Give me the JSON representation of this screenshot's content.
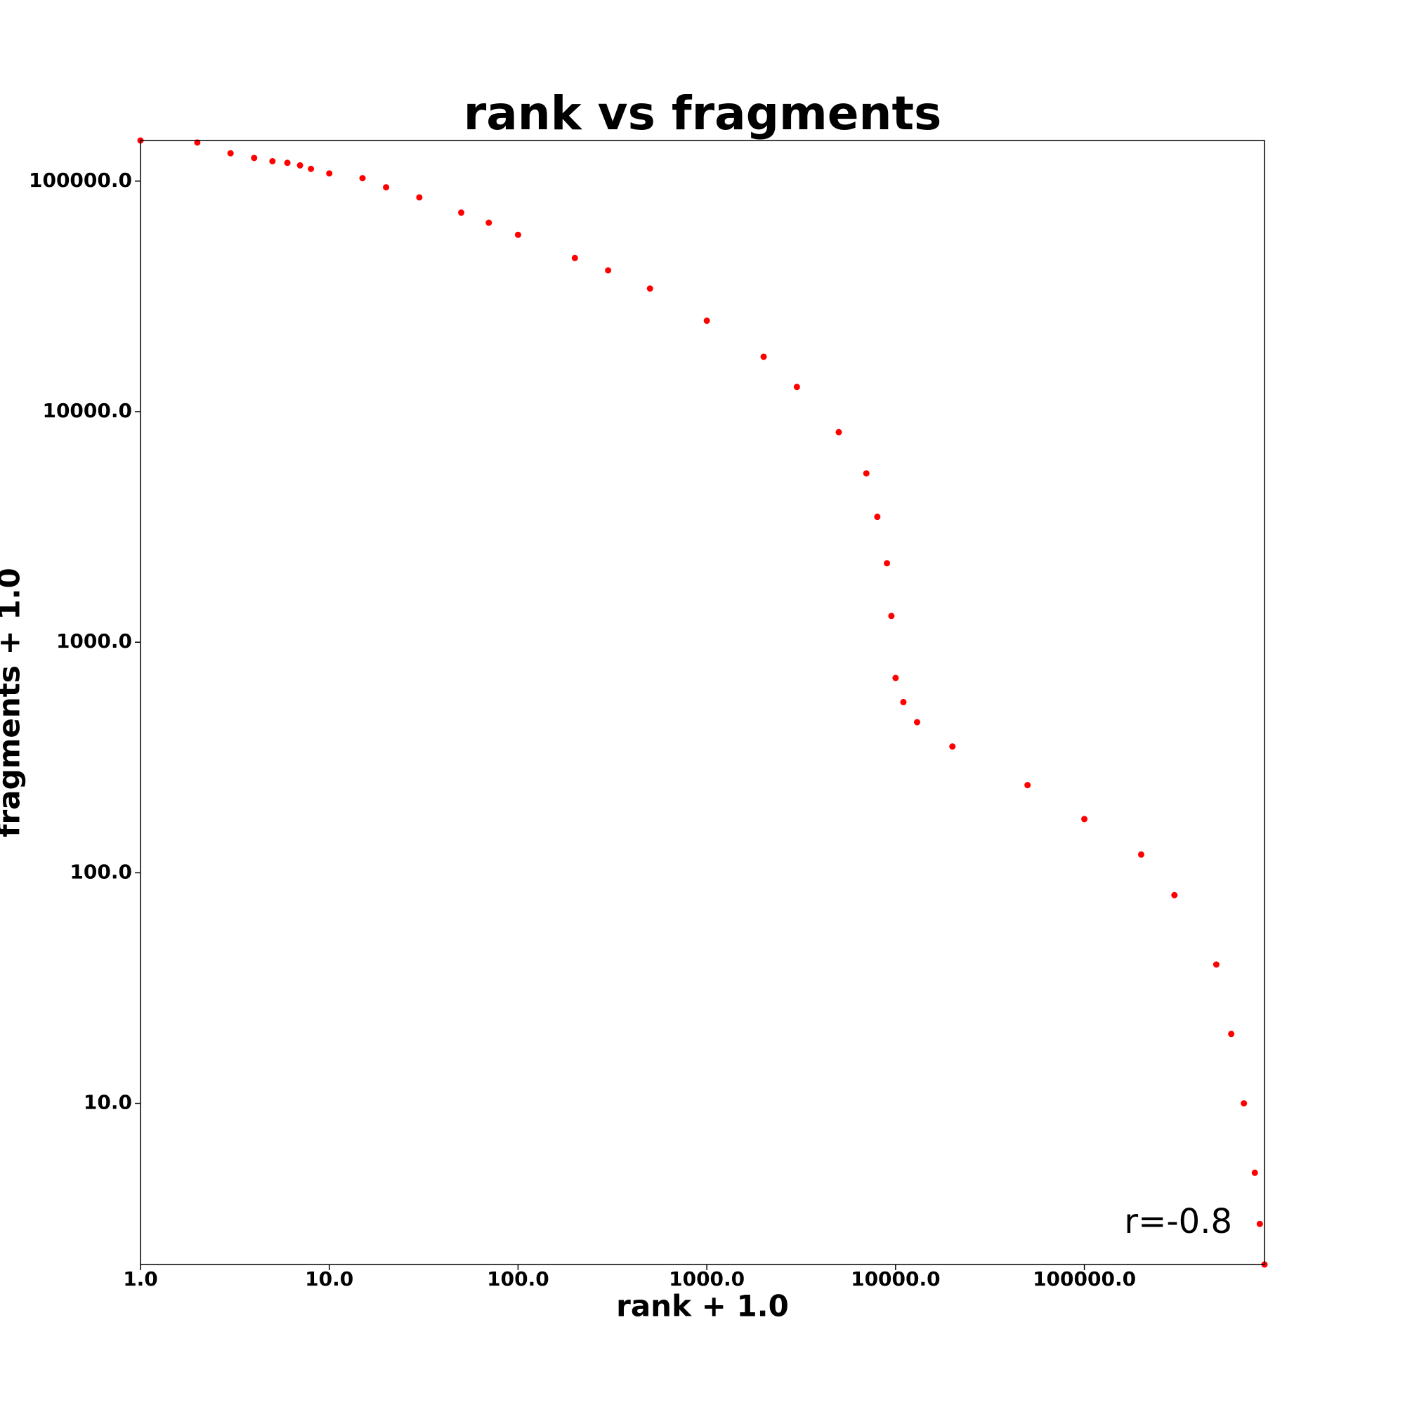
{
  "chart_data": {
    "type": "scatter",
    "title": "rank vs fragments",
    "x_label": "rank + 1.0",
    "y_label": "fragments + 1.0",
    "annotation": "r=-0.8",
    "x_scale": "log",
    "y_scale": "log",
    "grid": false,
    "series": [
      {
        "name": "fragments",
        "color": "#ff0000",
        "x": [
          1,
          2,
          3,
          4,
          5,
          6,
          7,
          8,
          10,
          15,
          20,
          30,
          50,
          70,
          100,
          200,
          300,
          500,
          1000,
          2000,
          3000,
          5000,
          7000,
          8000,
          9000,
          9500,
          10000,
          11000,
          13000,
          20000,
          50000,
          100000,
          200000,
          300000,
          500000,
          600000,
          700000,
          800000,
          850000,
          900000
        ],
        "values": [
          150000,
          147000,
          132000,
          126000,
          122000,
          120000,
          117000,
          113000,
          108000,
          103000,
          94000,
          85000,
          73000,
          66000,
          58500,
          46400,
          41000,
          34200,
          24800,
          17300,
          12800,
          8150,
          5400,
          3500,
          2200,
          1300,
          700,
          550,
          450,
          353,
          240,
          171,
          120,
          80,
          40,
          20,
          10,
          5,
          3,
          2
        ]
      }
    ],
    "xlim": [
      1,
      900000
    ],
    "ylim": [
      2,
      150000
    ],
    "xticks": [
      {
        "value": 1,
        "label": "1.0"
      },
      {
        "value": 10,
        "label": "10.0"
      },
      {
        "value": 100,
        "label": "100.0"
      },
      {
        "value": 1000,
        "label": "1000.0"
      },
      {
        "value": 10000,
        "label": "10000.0"
      },
      {
        "value": 100000,
        "label": "100000.0"
      }
    ],
    "yticks": [
      {
        "value": 10,
        "label": "10.0"
      },
      {
        "value": 100,
        "label": "100.0"
      },
      {
        "value": 1000,
        "label": "1000.0"
      },
      {
        "value": 10000,
        "label": "10000.0"
      },
      {
        "value": 100000,
        "label": "100000.0"
      }
    ]
  }
}
